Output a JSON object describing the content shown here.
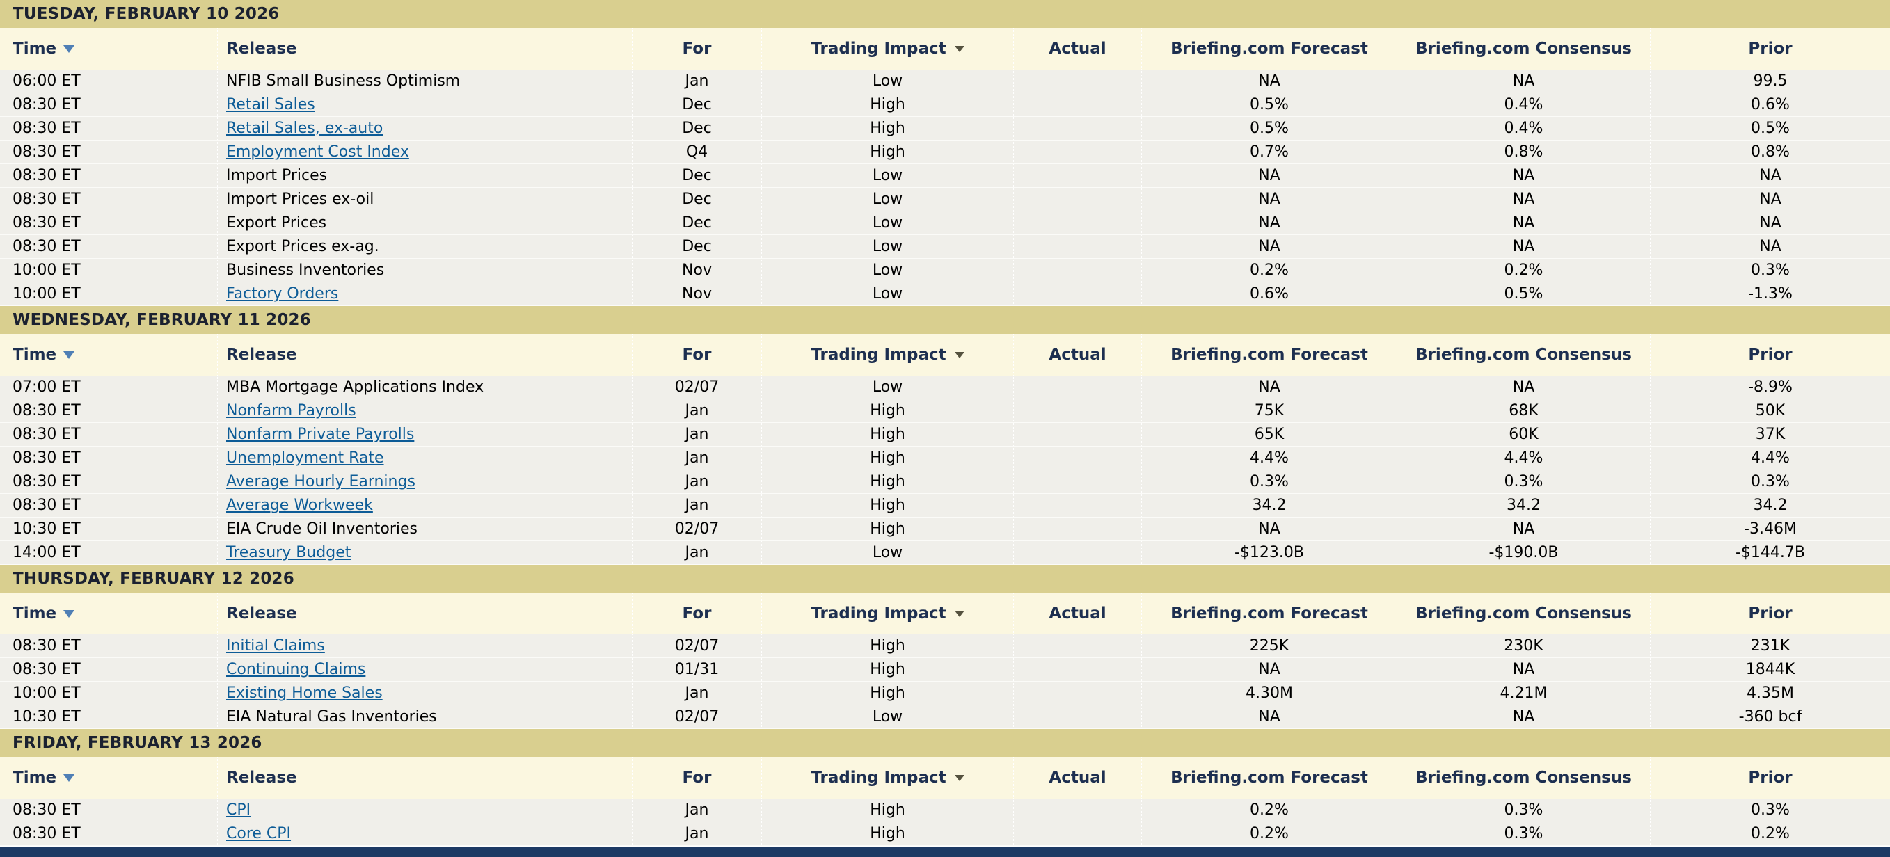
{
  "colors": {
    "day_band": "#d9cf8f",
    "header_row_bg": "#fbf7e0",
    "data_row_bg": "#f0efea",
    "link": "#0d5c97",
    "bottom_bar": "#1d3a64",
    "sort_icon": "#4f7fb5"
  },
  "columns": [
    {
      "label": "Time",
      "sortable": true
    },
    {
      "label": "Release"
    },
    {
      "label": "For"
    },
    {
      "label": "Trading Impact",
      "dropdown": true
    },
    {
      "label": "Actual"
    },
    {
      "label": "Briefing.com Forecast"
    },
    {
      "label": "Briefing.com Consensus"
    },
    {
      "label": "Prior"
    }
  ],
  "sections": [
    {
      "date": "TUESDAY, FEBRUARY 10 2026",
      "rows": [
        {
          "time": "06:00 ET",
          "release": "NFIB Small Business Optimism",
          "link": false,
          "for": "Jan",
          "impact": "Low",
          "actual": "",
          "forecast": "NA",
          "consensus": "NA",
          "prior": "99.5"
        },
        {
          "time": "08:30 ET",
          "release": "Retail Sales",
          "link": true,
          "for": "Dec",
          "impact": "High",
          "actual": "",
          "forecast": "0.5%",
          "consensus": "0.4%",
          "prior": "0.6%"
        },
        {
          "time": "08:30 ET",
          "release": "Retail Sales, ex-auto",
          "link": true,
          "for": "Dec",
          "impact": "High",
          "actual": "",
          "forecast": "0.5%",
          "consensus": "0.4%",
          "prior": "0.5%"
        },
        {
          "time": "08:30 ET",
          "release": "Employment Cost Index",
          "link": true,
          "for": "Q4",
          "impact": "High",
          "actual": "",
          "forecast": "0.7%",
          "consensus": "0.8%",
          "prior": "0.8%"
        },
        {
          "time": "08:30 ET",
          "release": "Import Prices",
          "link": false,
          "for": "Dec",
          "impact": "Low",
          "actual": "",
          "forecast": "NA",
          "consensus": "NA",
          "prior": "NA"
        },
        {
          "time": "08:30 ET",
          "release": "Import Prices ex-oil",
          "link": false,
          "for": "Dec",
          "impact": "Low",
          "actual": "",
          "forecast": "NA",
          "consensus": "NA",
          "prior": "NA"
        },
        {
          "time": "08:30 ET",
          "release": "Export Prices",
          "link": false,
          "for": "Dec",
          "impact": "Low",
          "actual": "",
          "forecast": "NA",
          "consensus": "NA",
          "prior": "NA"
        },
        {
          "time": "08:30 ET",
          "release": "Export Prices ex-ag.",
          "link": false,
          "for": "Dec",
          "impact": "Low",
          "actual": "",
          "forecast": "NA",
          "consensus": "NA",
          "prior": "NA"
        },
        {
          "time": "10:00 ET",
          "release": "Business Inventories",
          "link": false,
          "for": "Nov",
          "impact": "Low",
          "actual": "",
          "forecast": "0.2%",
          "consensus": "0.2%",
          "prior": "0.3%"
        },
        {
          "time": "10:00 ET",
          "release": "Factory Orders",
          "link": true,
          "for": "Nov",
          "impact": "Low",
          "actual": "",
          "forecast": "0.6%",
          "consensus": "0.5%",
          "prior": "-1.3%"
        }
      ]
    },
    {
      "date": "WEDNESDAY, FEBRUARY 11 2026",
      "rows": [
        {
          "time": "07:00 ET",
          "release": "MBA Mortgage Applications Index",
          "link": false,
          "for": "02/07",
          "impact": "Low",
          "actual": "",
          "forecast": "NA",
          "consensus": "NA",
          "prior": "-8.9%"
        },
        {
          "time": "08:30 ET",
          "release": "Nonfarm Payrolls",
          "link": true,
          "for": "Jan",
          "impact": "High",
          "actual": "",
          "forecast": "75K",
          "consensus": "68K",
          "prior": "50K"
        },
        {
          "time": "08:30 ET",
          "release": "Nonfarm Private Payrolls",
          "link": true,
          "for": "Jan",
          "impact": "High",
          "actual": "",
          "forecast": "65K",
          "consensus": "60K",
          "prior": "37K"
        },
        {
          "time": "08:30 ET",
          "release": "Unemployment Rate",
          "link": true,
          "for": "Jan",
          "impact": "High",
          "actual": "",
          "forecast": "4.4%",
          "consensus": "4.4%",
          "prior": "4.4%"
        },
        {
          "time": "08:30 ET",
          "release": "Average Hourly Earnings",
          "link": true,
          "for": "Jan",
          "impact": "High",
          "actual": "",
          "forecast": "0.3%",
          "consensus": "0.3%",
          "prior": "0.3%"
        },
        {
          "time": "08:30 ET",
          "release": "Average Workweek",
          "link": true,
          "for": "Jan",
          "impact": "High",
          "actual": "",
          "forecast": "34.2",
          "consensus": "34.2",
          "prior": "34.2"
        },
        {
          "time": "10:30 ET",
          "release": "EIA Crude Oil Inventories",
          "link": false,
          "for": "02/07",
          "impact": "High",
          "actual": "",
          "forecast": "NA",
          "consensus": "NA",
          "prior": "-3.46M"
        },
        {
          "time": "14:00 ET",
          "release": "Treasury Budget",
          "link": true,
          "for": "Jan",
          "impact": "Low",
          "actual": "",
          "forecast": "-$123.0B",
          "consensus": "-$190.0B",
          "prior": "-$144.7B"
        }
      ]
    },
    {
      "date": "THURSDAY, FEBRUARY 12 2026",
      "rows": [
        {
          "time": "08:30 ET",
          "release": "Initial Claims",
          "link": true,
          "for": "02/07",
          "impact": "High",
          "actual": "",
          "forecast": "225K",
          "consensus": "230K",
          "prior": "231K"
        },
        {
          "time": "08:30 ET",
          "release": "Continuing Claims",
          "link": true,
          "for": "01/31",
          "impact": "High",
          "actual": "",
          "forecast": "NA",
          "consensus": "NA",
          "prior": "1844K"
        },
        {
          "time": "10:00 ET",
          "release": "Existing Home Sales",
          "link": true,
          "for": "Jan",
          "impact": "High",
          "actual": "",
          "forecast": "4.30M",
          "consensus": "4.21M",
          "prior": "4.35M"
        },
        {
          "time": "10:30 ET",
          "release": "EIA Natural Gas Inventories",
          "link": false,
          "for": "02/07",
          "impact": "Low",
          "actual": "",
          "forecast": "NA",
          "consensus": "NA",
          "prior": "-360 bcf"
        }
      ]
    },
    {
      "date": "FRIDAY, FEBRUARY 13 2026",
      "rows": [
        {
          "time": "08:30 ET",
          "release": "CPI",
          "link": true,
          "for": "Jan",
          "impact": "High",
          "actual": "",
          "forecast": "0.2%",
          "consensus": "0.3%",
          "prior": "0.3%"
        },
        {
          "time": "08:30 ET",
          "release": "Core CPI",
          "link": true,
          "for": "Jan",
          "impact": "High",
          "actual": "",
          "forecast": "0.2%",
          "consensus": "0.3%",
          "prior": "0.2%"
        }
      ]
    }
  ]
}
